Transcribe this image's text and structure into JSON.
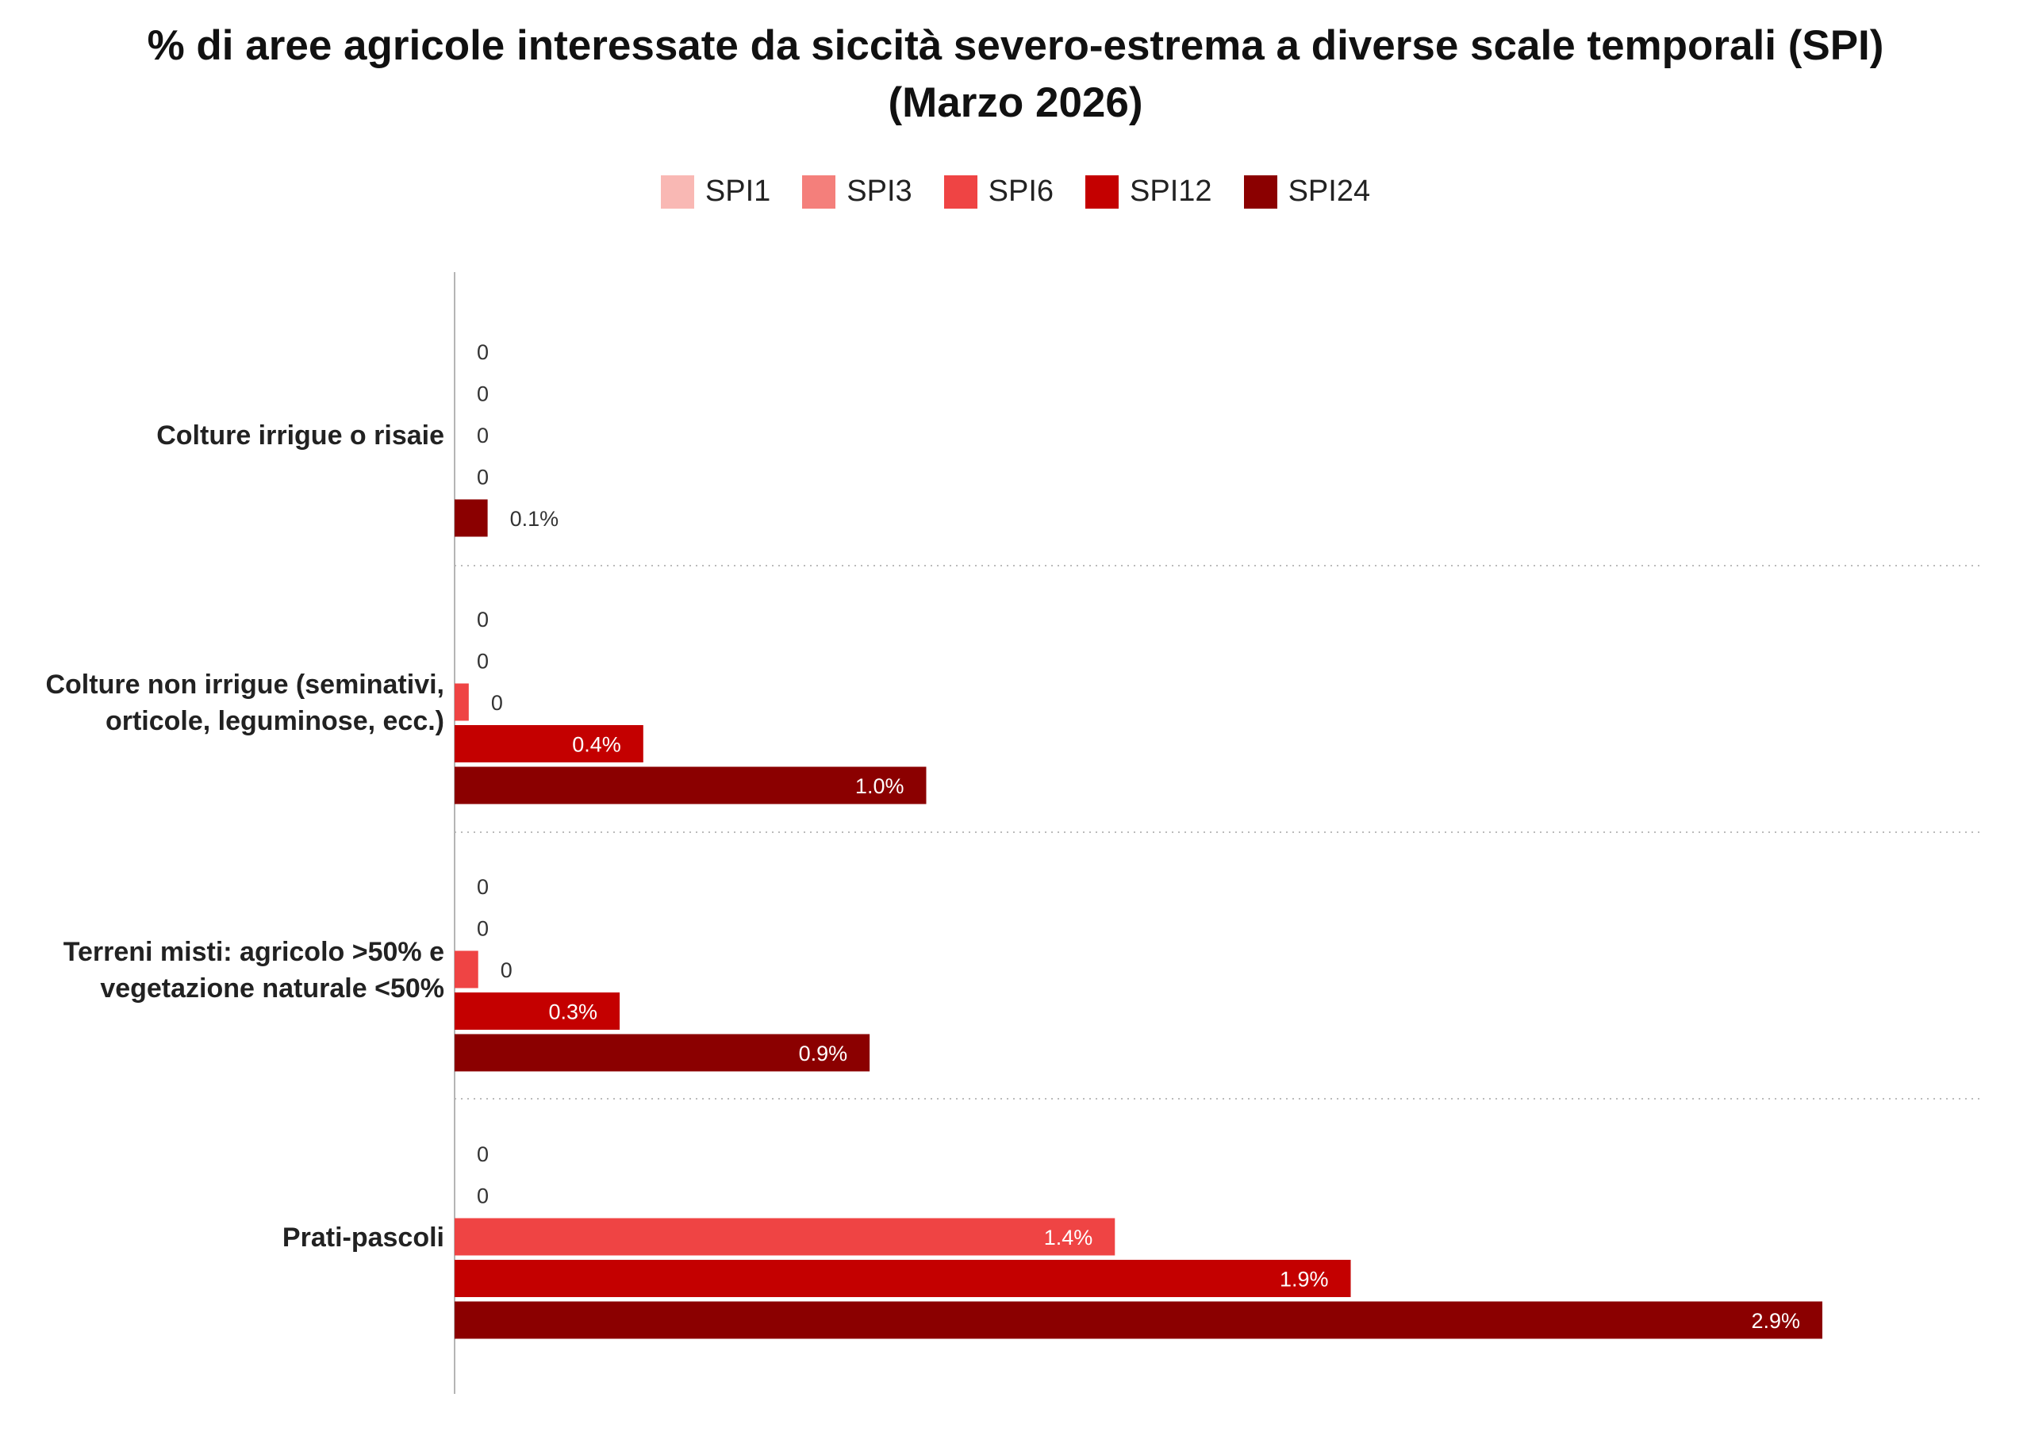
{
  "chart_data": {
    "type": "bar",
    "orientation": "horizontal",
    "title": "% di aree agricole interessate da siccità severo-estrema a diverse scale temporali (SPI)",
    "subtitle": "(Marzo 2026)",
    "legend_position": "top",
    "categories": [
      [
        "Colture irrigue o risaie"
      ],
      [
        "Colture non irrigue (seminativi,",
        "orticole, leguminose, ecc.)"
      ],
      [
        "Terreni misti: agricolo >50% e",
        "vegetazione naturale <50%"
      ],
      [
        "Prati-pascoli"
      ]
    ],
    "series": [
      {
        "name": "SPI1",
        "color": "#f9b8b4",
        "values": [
          0,
          0,
          0,
          0
        ],
        "labels": [
          "0",
          "0",
          "0",
          "0"
        ]
      },
      {
        "name": "SPI3",
        "color": "#f47f7b",
        "values": [
          0,
          0,
          0,
          0
        ],
        "labels": [
          "0",
          "0",
          "0",
          "0"
        ]
      },
      {
        "name": "SPI6",
        "color": "#ef4444",
        "values": [
          0,
          0.03,
          0.05,
          1.4
        ],
        "labels": [
          "0",
          "0",
          "0",
          "1.4%"
        ]
      },
      {
        "name": "SPI12",
        "color": "#c40000",
        "values": [
          0,
          0.4,
          0.35,
          1.9
        ],
        "labels": [
          "0",
          "0.4%",
          "0.3%",
          "1.9%"
        ]
      },
      {
        "name": "SPI24",
        "color": "#8b0000",
        "values": [
          0.07,
          1.0,
          0.88,
          2.9
        ],
        "labels": [
          "0.1%",
          "1.0%",
          "0.9%",
          "2.9%"
        ]
      }
    ],
    "xlim": [
      0,
      3.2
    ],
    "xlabel": "",
    "ylabel": "",
    "grid": false
  }
}
